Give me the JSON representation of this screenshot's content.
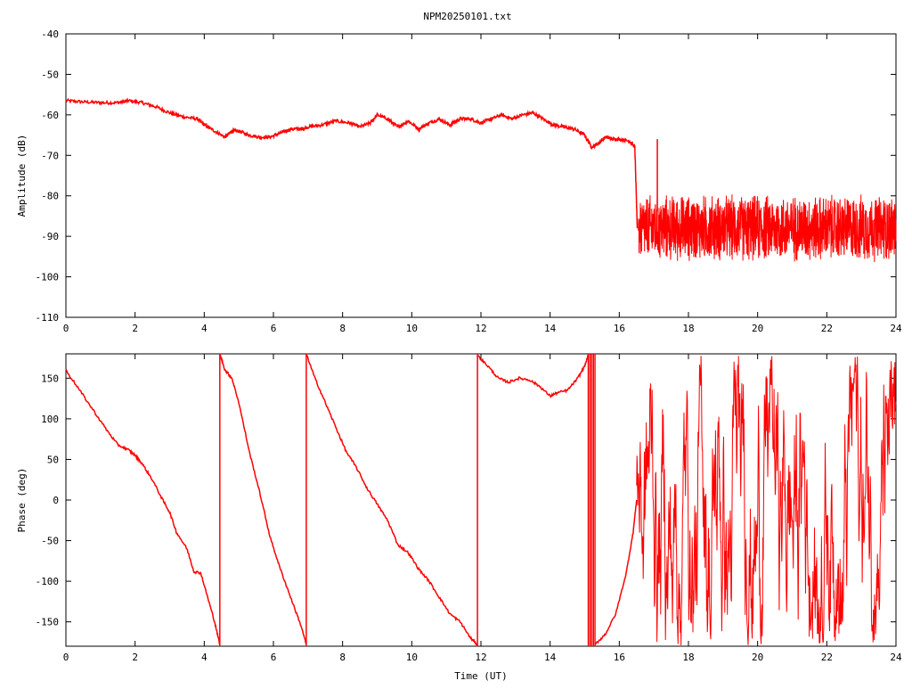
{
  "chart_data": [
    {
      "type": "line",
      "title": "NPM20250101.txt",
      "xlabel": "",
      "ylabel": "Amplitude (dB)",
      "xlim": [
        0,
        24
      ],
      "ylim": [
        -110,
        -40
      ],
      "xticks": [
        "0",
        "2",
        "4",
        "6",
        "8",
        "10",
        "12",
        "14",
        "16",
        "18",
        "20",
        "22",
        "24"
      ],
      "yticks": [
        "-40",
        "-50",
        "-60",
        "-70",
        "-80",
        "-90",
        "-100",
        "-110"
      ],
      "grid": false,
      "series_color": "#ff0000",
      "series": [
        {
          "x": [
            0,
            0.5,
            1,
            1.5,
            1.8,
            2.2,
            2.6,
            3,
            3.4,
            3.8,
            4.0,
            4.3,
            4.6,
            4.8,
            5.0,
            5.3,
            5.6,
            5.9,
            6.2,
            6.5,
            6.8,
            7.0,
            7.4,
            7.8,
            8.2,
            8.5,
            8.8,
            9.0,
            9.3,
            9.6,
            9.9,
            10.2,
            10.5,
            10.8,
            11.1,
            11.4,
            11.7,
            12.0,
            12.3,
            12.6,
            12.9,
            13.2,
            13.5,
            13.8,
            14.1,
            14.4,
            14.7,
            15.0,
            15.2,
            15.4,
            15.6,
            15.8,
            16.0,
            16.3,
            16.45,
            16.52
          ],
          "y": [
            -56.5,
            -56.8,
            -57.0,
            -57.0,
            -56.5,
            -57.0,
            -58.0,
            -59.5,
            -60.5,
            -61.0,
            -62.5,
            -64.0,
            -65.5,
            -64.0,
            -64.0,
            -65.0,
            -65.5,
            -65.5,
            -64.5,
            -63.5,
            -63.5,
            -63.0,
            -62.5,
            -61.5,
            -62.0,
            -63.0,
            -62.0,
            -60.0,
            -61.0,
            -63.0,
            -61.5,
            -63.5,
            -62.0,
            -61.0,
            -62.5,
            -61.0,
            -61.0,
            -62.0,
            -61.0,
            -60.0,
            -61.0,
            -60.0,
            -59.5,
            -61.0,
            -62.5,
            -63.0,
            -63.5,
            -65.0,
            -68.0,
            -67.0,
            -65.5,
            -66.0,
            -66.0,
            -66.5,
            -68.0,
            -88.0
          ]
        }
      ],
      "noise_band": {
        "x_start": 16.55,
        "x_end": 24,
        "y_center": -88,
        "y_min": -96,
        "y_max": -78
      },
      "spike": {
        "x": 17.1,
        "y": -66
      }
    },
    {
      "type": "line",
      "title": "",
      "xlabel": "Time (UT)",
      "ylabel": "Phase (deg)",
      "xlim": [
        0,
        24
      ],
      "ylim": [
        -180,
        180
      ],
      "xticks": [
        "0",
        "2",
        "4",
        "6",
        "8",
        "10",
        "12",
        "14",
        "16",
        "18",
        "20",
        "22",
        "24"
      ],
      "yticks": [
        "150",
        "100",
        "50",
        "0",
        "-50",
        "-100",
        "-150"
      ],
      "ytick_values": [
        150,
        100,
        50,
        0,
        -50,
        -100,
        -150
      ],
      "grid": false,
      "series_color": "#ff0000",
      "segments": [
        {
          "x": [
            0,
            0.4,
            0.8,
            1.2,
            1.5,
            1.8,
            2.0,
            2.2,
            2.5,
            2.8,
            3.0,
            3.2,
            3.5,
            3.7,
            3.9,
            4.1,
            4.3,
            4.45
          ],
          "y": [
            160,
            135,
            110,
            85,
            68,
            62,
            55,
            45,
            25,
            0,
            -15,
            -40,
            -60,
            -88,
            -90,
            -120,
            -150,
            -178
          ]
        },
        {
          "x": [
            4.45,
            4.6,
            4.8,
            5.0,
            5.3,
            5.6,
            5.9,
            6.2,
            6.5,
            6.8,
            6.95
          ],
          "y": [
            180,
            160,
            150,
            120,
            60,
            10,
            -45,
            -85,
            -120,
            -155,
            -178
          ]
        },
        {
          "x": [
            6.95,
            7.2,
            7.5,
            7.8,
            8.1,
            8.4,
            8.7,
            9.0,
            9.3,
            9.6,
            9.9,
            10.2,
            10.5,
            10.8,
            11.1,
            11.4,
            11.7,
            11.9
          ],
          "y": [
            180,
            150,
            120,
            90,
            60,
            40,
            15,
            -5,
            -25,
            -55,
            -65,
            -85,
            -100,
            -120,
            -140,
            -150,
            -170,
            -178
          ]
        },
        {
          "x": [
            11.9,
            12.2,
            12.5,
            12.8,
            13.1,
            13.4,
            13.7,
            14.0,
            14.2,
            14.5,
            14.8,
            15.0,
            15.1
          ],
          "y": [
            178,
            165,
            150,
            145,
            150,
            148,
            140,
            128,
            132,
            135,
            150,
            165,
            178
          ]
        },
        {
          "x": [
            15.3,
            15.6,
            15.9,
            16.2,
            16.4,
            16.5
          ],
          "y": [
            -178,
            -165,
            -140,
            -90,
            -40,
            0
          ]
        }
      ],
      "wraps": [
        4.45,
        6.95,
        11.9
      ],
      "noise_band": {
        "x_start": 16.5,
        "x_end": 24,
        "y_min": -180,
        "y_max": 180
      }
    }
  ]
}
